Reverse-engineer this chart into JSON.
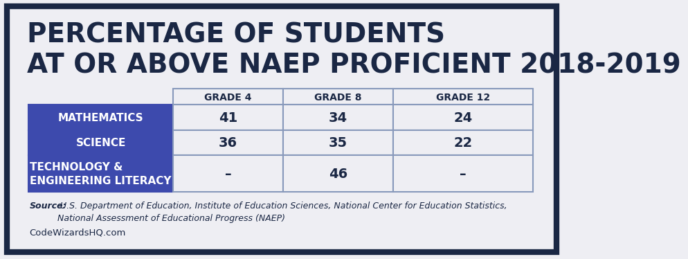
{
  "title_line1": "PERCENTAGE OF STUDENTS",
  "title_line2": "AT OR ABOVE NAEP PROFICIENT 2018-2019",
  "background_color": "#eeeef3",
  "outer_border_color": "#1a2744",
  "header_bg": "#eeeef3",
  "header_text_color": "#1a2744",
  "row_label_bg": "#3d4aad",
  "row_label_text_color": "#ffffff",
  "cell_bg": "#eeeef3",
  "cell_border_color": "#8899bb",
  "cell_text_color": "#1a2744",
  "title_color": "#1a2744",
  "source_color": "#1a2744",
  "col_headers": [
    "GRADE 4",
    "GRADE 8",
    "GRADE 12"
  ],
  "row_labels": [
    "MATHEMATICS",
    "SCIENCE",
    "TECHNOLOGY &\nENGINEERING LITERACY"
  ],
  "data": [
    [
      "41",
      "34",
      "24"
    ],
    [
      "36",
      "35",
      "22"
    ],
    [
      "–",
      "46",
      "–"
    ]
  ],
  "source_bold": "Source:",
  "source_text": " U.S. Department of Education, Institute of Education Sciences, National Center for Education Statistics,\nNational Assessment of Educational Progress (NAEP)",
  "website": "CodeWizardsHQ.com",
  "title_fontsize": 28,
  "header_fontsize": 10,
  "label_fontsize": 11,
  "data_fontsize": 14,
  "source_fontsize": 9
}
